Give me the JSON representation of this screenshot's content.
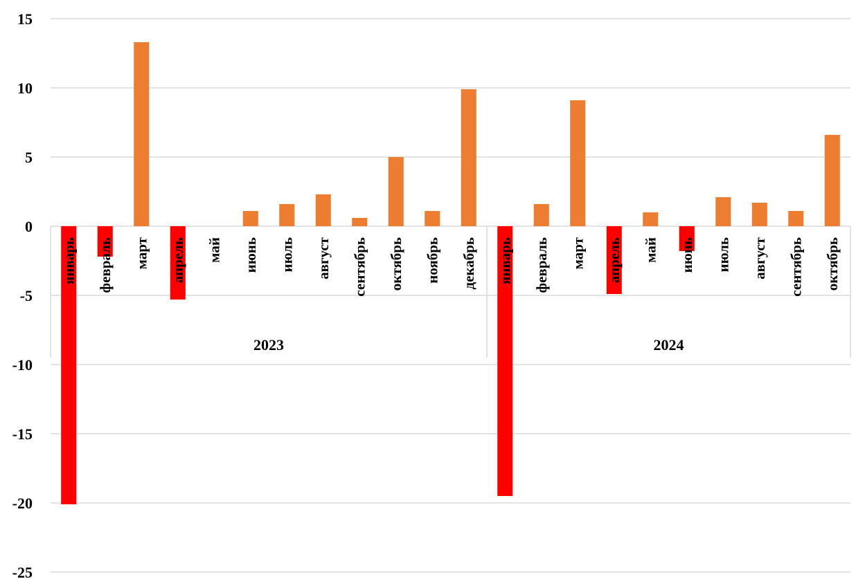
{
  "chart_data": {
    "type": "bar",
    "title": "",
    "xlabel": "",
    "ylabel": "",
    "ylim": [
      -25,
      15
    ],
    "yticks": [
      15,
      10,
      5,
      0,
      -5,
      -10,
      -15,
      -20,
      -25
    ],
    "grid": true,
    "legend": "none",
    "colors": {
      "positive": "#ED7D31",
      "negative": "#FF0000",
      "grid": "#D9D9D9"
    },
    "groups": [
      {
        "label": "2023",
        "categories": [
          "январь",
          "февраль",
          "март",
          "апрель",
          "май",
          "июнь",
          "июль",
          "август",
          "сентябрь",
          "октябрь",
          "ноябрь",
          "декабрь"
        ],
        "values": [
          -20.1,
          -2.2,
          13.3,
          -5.3,
          0,
          1.1,
          1.6,
          2.3,
          0.6,
          5.0,
          1.1,
          9.9
        ]
      },
      {
        "label": "2024",
        "categories": [
          "январь",
          "февраль",
          "март",
          "апрель",
          "май",
          "июнь",
          "июль",
          "август",
          "сентябрь",
          "октябрь"
        ],
        "values": [
          -19.5,
          1.6,
          9.1,
          -4.9,
          1.0,
          -1.8,
          2.1,
          1.7,
          1.1,
          6.6
        ]
      }
    ]
  }
}
